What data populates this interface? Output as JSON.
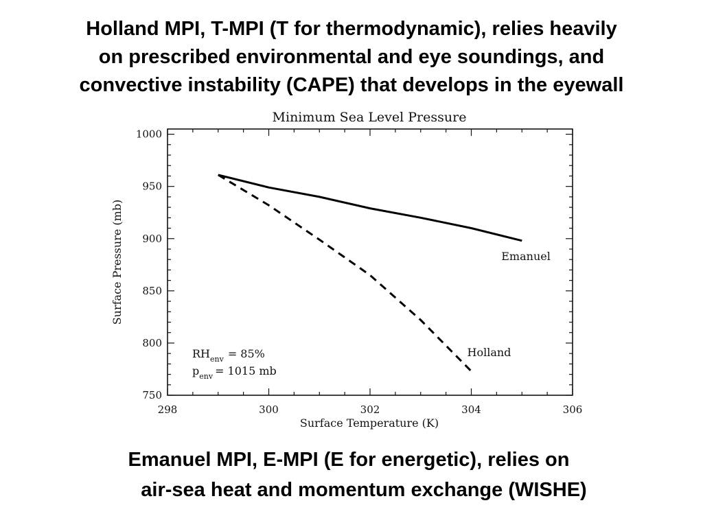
{
  "slide": {
    "headline": [
      "Holland MPI, T-MPI (T for thermodynamic), relies heavily",
      "on prescribed environmental and eye soundings, and",
      "convective instability (CAPE) that develops in the eyewall"
    ],
    "footer": [
      "Emanuel MPI, E-MPI (E for energetic), relies on",
      "air-sea heat and momentum exchange (WISHE)"
    ]
  },
  "chart_data": {
    "type": "line",
    "title": "Minimum Sea Level Pressure",
    "xlabel": "Surface Temperature (K)",
    "ylabel": "Surface Pressure (mb)",
    "xlim": [
      298,
      306
    ],
    "ylim": [
      750,
      1005
    ],
    "xticks": [
      298,
      300,
      302,
      304,
      306
    ],
    "yticks": [
      750,
      800,
      850,
      900,
      950,
      1000
    ],
    "grid": false,
    "annotation": {
      "rh_main": "RH",
      "rh_sub": "env",
      "rh_value": "= 85%",
      "p_main": "p",
      "p_sub": "env",
      "p_value": "= 1015 mb"
    },
    "series": [
      {
        "name": "Emanuel",
        "style": "solid",
        "x": [
          299,
          300,
          301,
          302,
          303,
          304,
          305
        ],
        "y": [
          961,
          949,
          940,
          929,
          920,
          910,
          898
        ]
      },
      {
        "name": "Holland",
        "style": "dashed",
        "x": [
          299,
          300,
          301,
          302,
          303,
          304
        ],
        "y": [
          961,
          932,
          899,
          865,
          822,
          773
        ]
      }
    ]
  }
}
